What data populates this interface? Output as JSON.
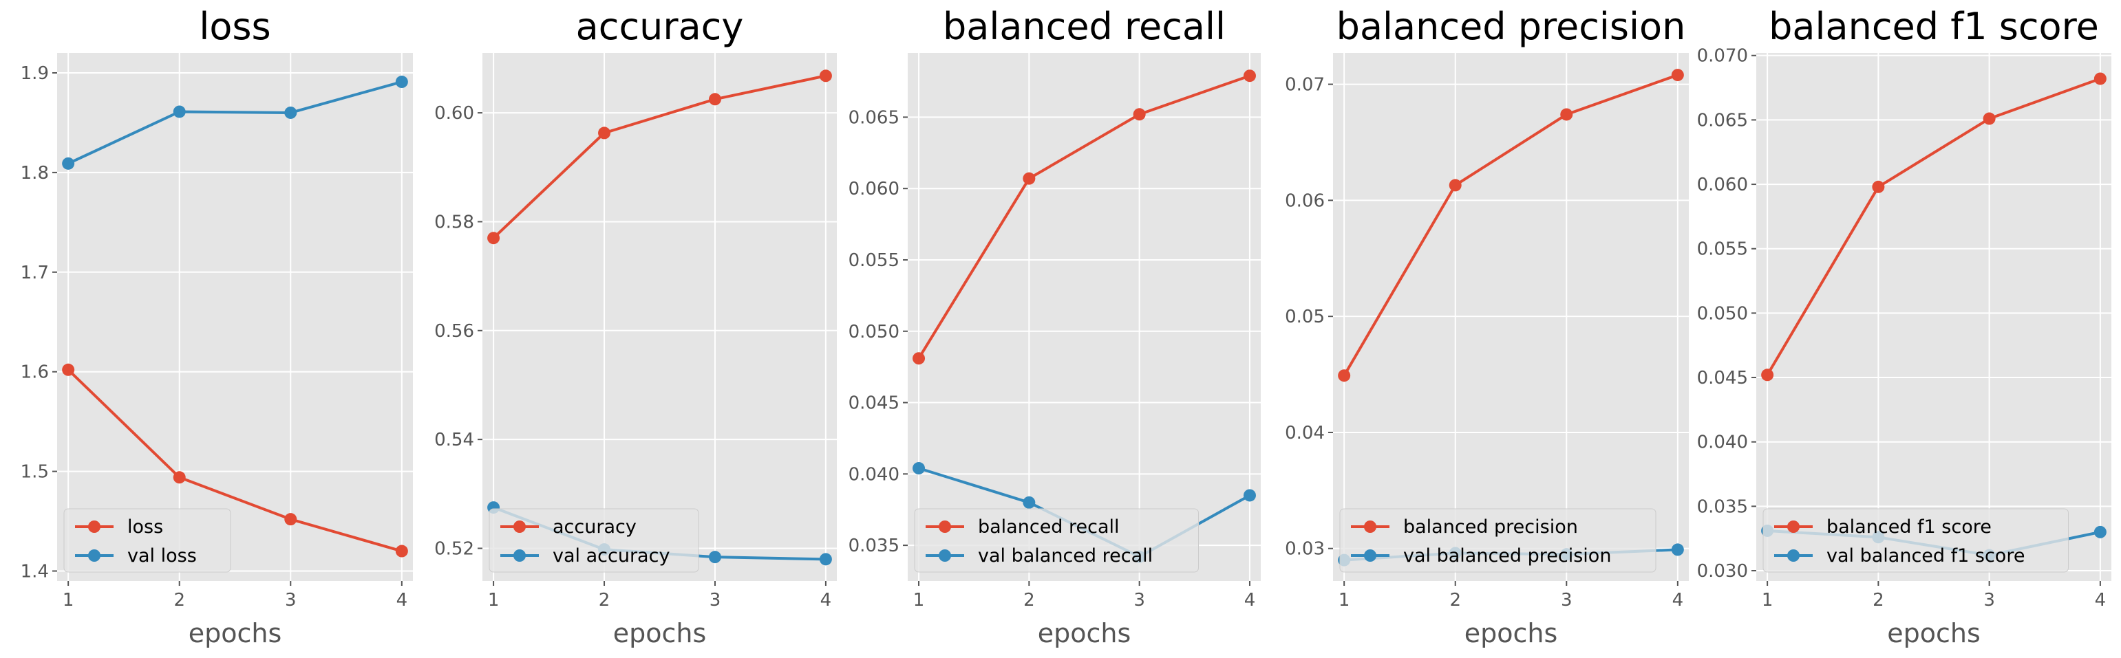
{
  "colors": {
    "background": "#ffffff",
    "panel": "#e5e5e5",
    "grid": "#ffffff",
    "tick_text": "#555555",
    "title_text": "#000000",
    "train_series": "#e24a33",
    "val_series": "#348abd"
  },
  "chart_data": [
    {
      "type": "line",
      "title": "loss",
      "xlabel": "epochs",
      "ylabel": "",
      "x": [
        1,
        2,
        3,
        4
      ],
      "xlim": [
        0.9,
        4.1
      ],
      "ylim": [
        1.39,
        1.92
      ],
      "yticks": [
        1.4,
        1.5,
        1.6,
        1.7,
        1.8,
        1.9
      ],
      "ytick_labels": [
        "1.4",
        "1.5",
        "1.6",
        "1.7",
        "1.8",
        "1.9"
      ],
      "xticks": [
        1,
        2,
        3,
        4
      ],
      "xtick_labels": [
        "1",
        "2",
        "3",
        "4"
      ],
      "grid": true,
      "legend_position": "lower-left",
      "series": [
        {
          "name": "loss",
          "values": [
            1.602,
            1.494,
            1.452,
            1.42
          ]
        },
        {
          "name": "val loss",
          "values": [
            1.809,
            1.861,
            1.86,
            1.891
          ]
        }
      ]
    },
    {
      "type": "line",
      "title": "accuracy",
      "xlabel": "epochs",
      "ylabel": "",
      "x": [
        1,
        2,
        3,
        4
      ],
      "xlim": [
        0.9,
        4.1
      ],
      "ylim": [
        0.514,
        0.611
      ],
      "yticks": [
        0.52,
        0.54,
        0.56,
        0.58,
        0.6
      ],
      "ytick_labels": [
        "0.52",
        "0.54",
        "0.56",
        "0.58",
        "0.60"
      ],
      "xticks": [
        1,
        2,
        3,
        4
      ],
      "xtick_labels": [
        "1",
        "2",
        "3",
        "4"
      ],
      "grid": true,
      "legend_position": "lower-left",
      "series": [
        {
          "name": "accuracy",
          "values": [
            0.577,
            0.5963,
            0.6025,
            0.6068
          ]
        },
        {
          "name": "val accuracy",
          "values": [
            0.5275,
            0.5198,
            0.5184,
            0.518
          ]
        }
      ]
    },
    {
      "type": "line",
      "title": "balanced recall",
      "xlabel": "epochs",
      "ylabel": "",
      "x": [
        1,
        2,
        3,
        4
      ],
      "xlim": [
        0.9,
        4.1
      ],
      "ylim": [
        0.0325,
        0.0695
      ],
      "yticks": [
        0.035,
        0.04,
        0.045,
        0.05,
        0.055,
        0.06,
        0.065
      ],
      "ytick_labels": [
        "0.035",
        "0.040",
        "0.045",
        "0.050",
        "0.055",
        "0.060",
        "0.065"
      ],
      "xticks": [
        1,
        2,
        3,
        4
      ],
      "xtick_labels": [
        "1",
        "2",
        "3",
        "4"
      ],
      "grid": true,
      "legend_position": "lower-left",
      "series": [
        {
          "name": "balanced recall",
          "values": [
            0.0481,
            0.0607,
            0.0652,
            0.0679
          ]
        },
        {
          "name": "val balanced recall",
          "values": [
            0.0404,
            0.038,
            0.0342,
            0.0385
          ]
        }
      ]
    },
    {
      "type": "line",
      "title": "balanced precision",
      "xlabel": "epochs",
      "ylabel": "",
      "x": [
        1,
        2,
        3,
        4
      ],
      "xlim": [
        0.9,
        4.1
      ],
      "ylim": [
        0.0272,
        0.0727
      ],
      "yticks": [
        0.03,
        0.04,
        0.05,
        0.06,
        0.07
      ],
      "ytick_labels": [
        "0.03",
        "0.04",
        "0.05",
        "0.06",
        "0.07"
      ],
      "xticks": [
        1,
        2,
        3,
        4
      ],
      "xtick_labels": [
        "1",
        "2",
        "3",
        "4"
      ],
      "grid": true,
      "legend_position": "lower-left",
      "series": [
        {
          "name": "balanced precision",
          "values": [
            0.0449,
            0.0613,
            0.0674,
            0.0708
          ]
        },
        {
          "name": "val balanced precision",
          "values": [
            0.029,
            0.0296,
            0.0295,
            0.0299
          ]
        }
      ]
    },
    {
      "type": "line",
      "title": "balanced f1 score",
      "xlabel": "epochs",
      "ylabel": "",
      "x": [
        1,
        2,
        3,
        4
      ],
      "xlim": [
        0.9,
        4.1
      ],
      "ylim": [
        0.0292,
        0.0702
      ],
      "yticks": [
        0.03,
        0.035,
        0.04,
        0.045,
        0.05,
        0.055,
        0.06,
        0.065,
        0.07
      ],
      "ytick_labels": [
        "0.030",
        "0.035",
        "0.040",
        "0.045",
        "0.050",
        "0.055",
        "0.060",
        "0.065",
        "0.070"
      ],
      "xticks": [
        1,
        2,
        3,
        4
      ],
      "xtick_labels": [
        "1",
        "2",
        "3",
        "4"
      ],
      "grid": true,
      "legend_position": "lower-left",
      "series": [
        {
          "name": "balanced f1 score",
          "values": [
            0.0452,
            0.0598,
            0.0651,
            0.0682
          ]
        },
        {
          "name": "val balanced f1 score",
          "values": [
            0.0331,
            0.0326,
            0.0312,
            0.033
          ]
        }
      ]
    }
  ]
}
